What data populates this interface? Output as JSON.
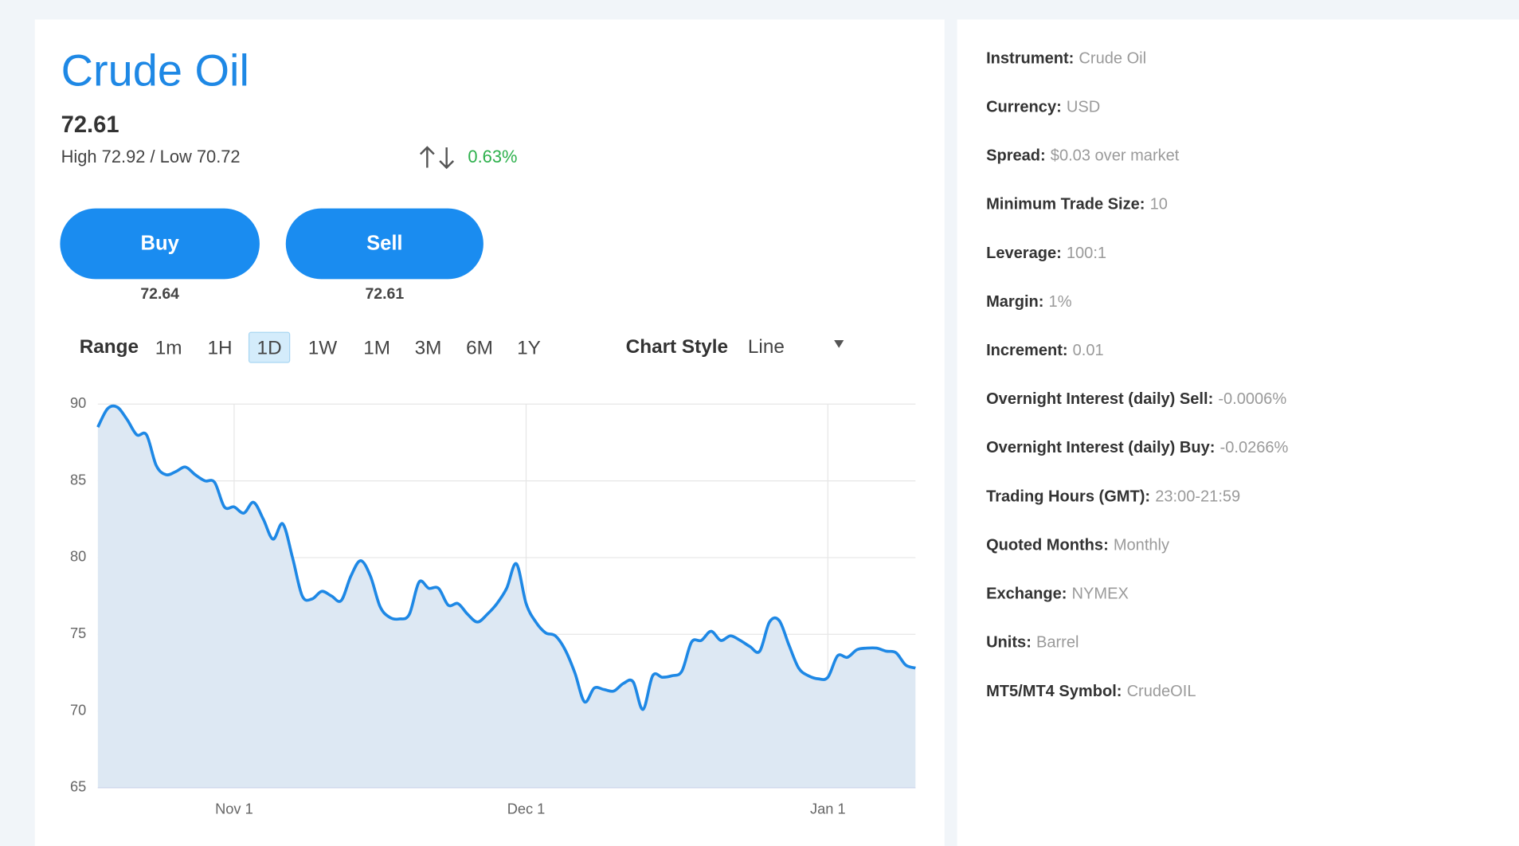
{
  "instrument": {
    "title": "Crude Oil",
    "price": 72.61,
    "high_low": "High 72.92 / Low 70.72",
    "change": "0.63%"
  },
  "buttons": [
    {
      "label": "Buy",
      "price": 72.64
    },
    {
      "label": "Sell",
      "price": 72.61
    }
  ],
  "range": {
    "label": "Range",
    "options": [
      "1m",
      "1H",
      "1D",
      "1W",
      "1M",
      "3M",
      "6M",
      "1Y"
    ],
    "selected": "1D"
  },
  "chart_style": {
    "label": "Chart Style",
    "value": "Line"
  },
  "details": [
    {
      "label": "Instrument:",
      "value": "Crude Oil"
    },
    {
      "label": "Currency:",
      "value": "USD"
    },
    {
      "label": "Spread:",
      "value": "$0.03 over market"
    },
    {
      "label": "Minimum Trade Size:",
      "value": "10"
    },
    {
      "label": "Leverage:",
      "value": "100:1"
    },
    {
      "label": "Margin:",
      "value": "1%"
    },
    {
      "label": "Increment:",
      "value": "0.01"
    },
    {
      "label": "Overnight Interest (daily) Sell:",
      "value": "-0.0006%"
    },
    {
      "label": "Overnight Interest (daily) Buy:",
      "value": "-0.0266%"
    },
    {
      "label": "Trading Hours (GMT):",
      "value": "23:00-21:59"
    },
    {
      "label": "Quoted Months:",
      "value": "Monthly"
    },
    {
      "label": "Exchange:",
      "value": "NYMEX"
    },
    {
      "label": "Units:",
      "value": "Barrel"
    },
    {
      "label": "MT5/MT4 Symbol:",
      "value": "CrudeOIL"
    }
  ],
  "chart_data": {
    "type": "area",
    "categories": [
      null,
      null,
      null,
      null,
      null,
      null,
      null,
      null,
      null,
      null,
      null,
      null,
      null,
      null,
      "Nov 1",
      null,
      null,
      null,
      null,
      null,
      null,
      null,
      null,
      null,
      null,
      null,
      null,
      null,
      null,
      null,
      null,
      null,
      null,
      null,
      null,
      null,
      null,
      null,
      null,
      null,
      null,
      null,
      null,
      null,
      "Dec 1",
      null,
      null,
      null,
      null,
      null,
      null,
      null,
      null,
      null,
      null,
      null,
      null,
      null,
      null,
      null,
      null,
      null,
      null,
      null,
      null,
      null,
      null,
      null,
      null,
      null,
      null,
      null,
      null,
      null,
      null,
      "Jan 1",
      null,
      null,
      null,
      null,
      null,
      null,
      null,
      null,
      null
    ],
    "values": [
      88.5,
      89.7,
      89.8,
      89.0,
      88.0,
      88.0,
      86.0,
      85.4,
      85.6,
      85.9,
      85.4,
      85.0,
      84.9,
      83.3,
      83.3,
      82.9,
      83.6,
      82.5,
      81.2,
      82.2,
      80.0,
      77.5,
      77.3,
      77.8,
      77.5,
      77.2,
      78.8,
      79.8,
      78.8,
      76.8,
      76.1,
      76.0,
      76.3,
      78.4,
      78.0,
      78.0,
      76.9,
      77.0,
      76.3,
      75.8,
      76.3,
      77.0,
      78.0,
      79.6,
      77.0,
      75.8,
      75.1,
      74.9,
      74.0,
      72.5,
      70.6,
      71.5,
      71.4,
      71.3,
      71.8,
      71.9,
      70.1,
      72.3,
      72.2,
      72.3,
      72.6,
      74.5,
      74.6,
      75.2,
      74.6,
      74.9,
      74.6,
      74.2,
      73.9,
      75.8,
      75.9,
      74.3,
      72.8,
      72.3,
      72.1,
      72.2,
      73.6,
      73.5,
      74.0,
      74.1,
      74.1,
      73.9,
      73.8,
      73.0,
      72.8
    ],
    "color": "#1e88e5",
    "fill": "#dde8f3",
    "ylim": [
      65,
      90
    ],
    "yticks": [
      65,
      70,
      75,
      80,
      85,
      90
    ],
    "grid": true
  }
}
